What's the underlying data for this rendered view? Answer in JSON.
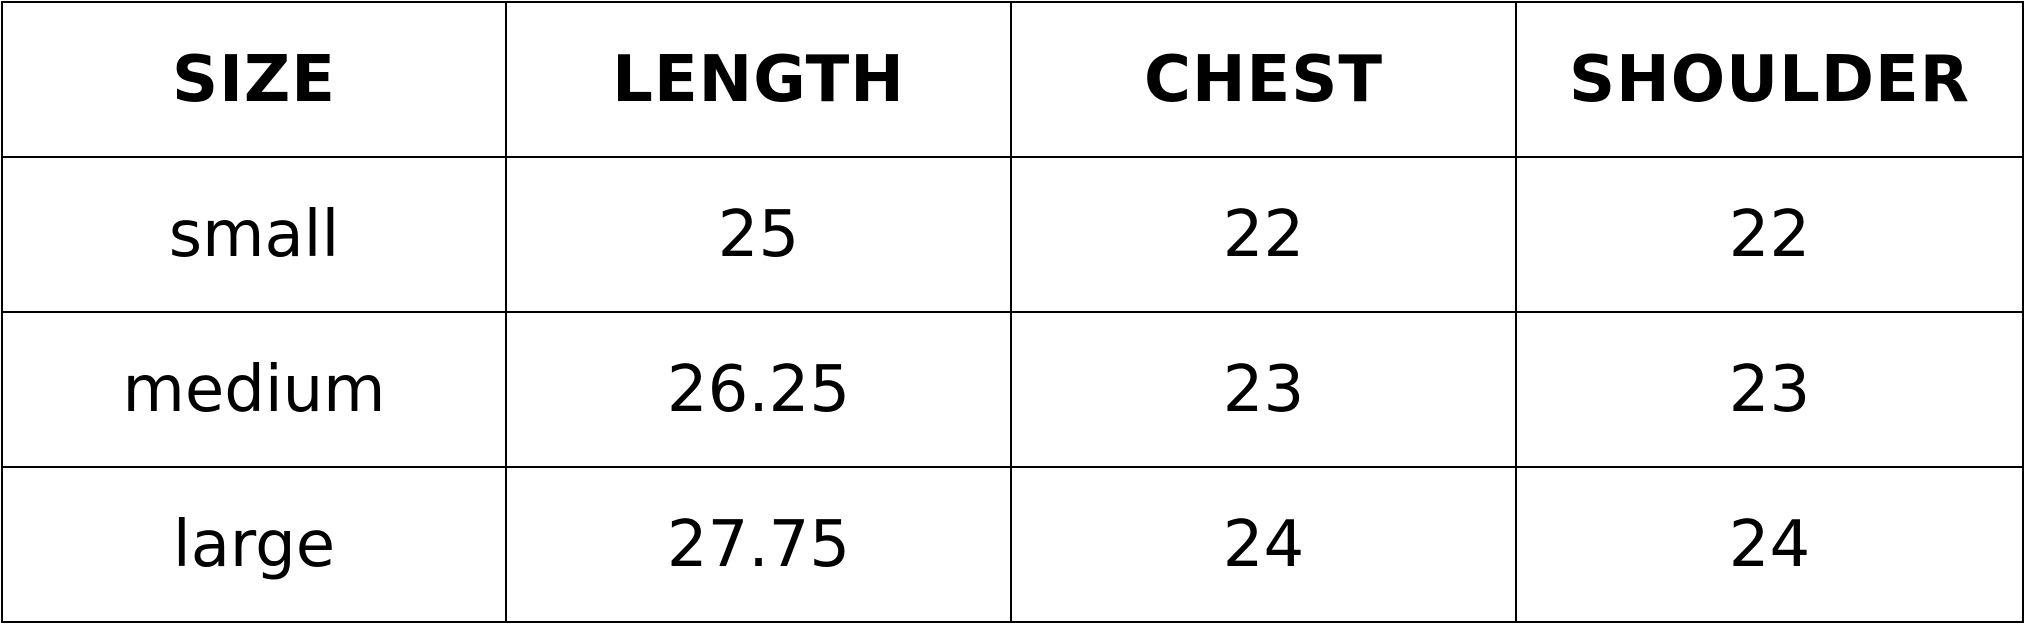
{
  "table": {
    "headers": [
      "SIZE",
      "LENGTH",
      "CHEST",
      "SHOULDER"
    ],
    "rows": [
      [
        "small",
        "25",
        "22",
        "22"
      ],
      [
        "medium",
        "26.25",
        "23",
        "23"
      ],
      [
        "large",
        "27.75",
        "24",
        "24"
      ]
    ]
  },
  "colors": {
    "text": "#000000",
    "border": "#000000",
    "background": "#ffffff"
  }
}
